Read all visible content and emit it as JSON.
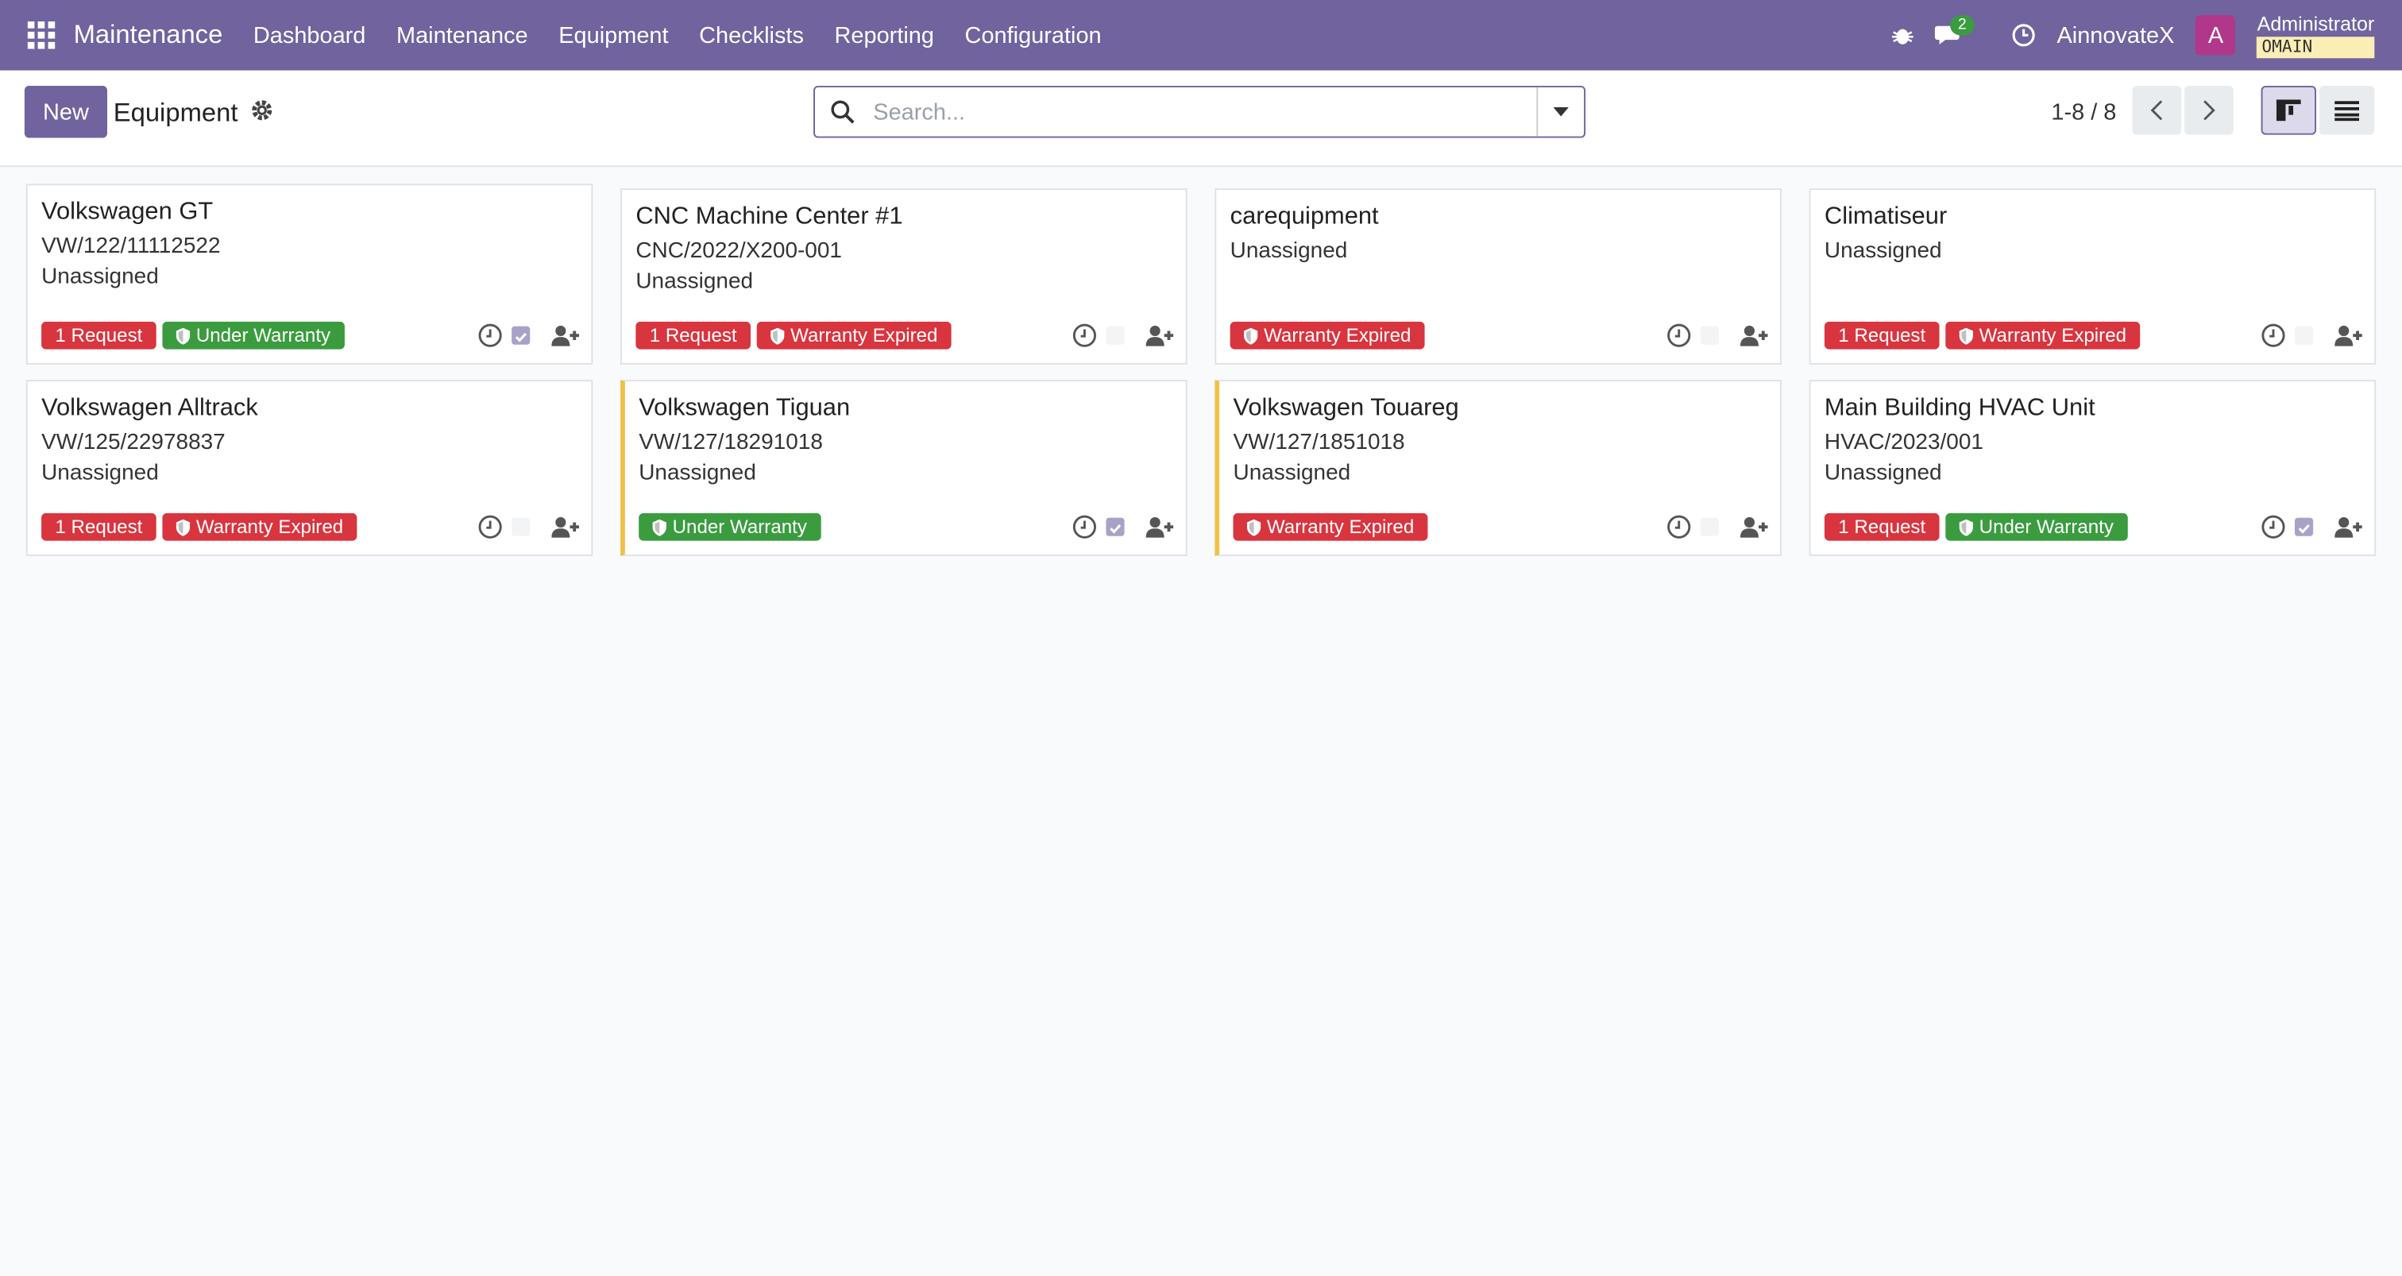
{
  "navbar": {
    "app_name": "Maintenance",
    "menu": [
      "Dashboard",
      "Maintenance",
      "Equipment",
      "Checklists",
      "Reporting",
      "Configuration"
    ],
    "message_count": "2",
    "company": "AinnovateX",
    "avatar": "A",
    "user": "Administrator",
    "database": "OMAIN"
  },
  "control_panel": {
    "new_button": "New",
    "title": "Equipment",
    "search_placeholder": "Search...",
    "pager": "1-8 / 8"
  },
  "cards": [
    {
      "name": "Volkswagen GT",
      "code": "VW/122/11112522",
      "assignee": "Unassigned",
      "requests": "1 Request",
      "warranty": "Under Warranty",
      "warranty_ok": true,
      "checked": true,
      "highlight": false
    },
    {
      "name": "CNC Machine Center #1",
      "code": "CNC/2022/X200-001",
      "assignee": "Unassigned",
      "requests": "1 Request",
      "warranty": "Warranty Expired",
      "warranty_ok": false,
      "checked": false,
      "highlight": false
    },
    {
      "name": "carequipment",
      "assignee": "Unassigned",
      "warranty": "Warranty Expired",
      "warranty_ok": false,
      "checked": false,
      "highlight": false
    },
    {
      "name": "Climatiseur",
      "assignee": "Unassigned",
      "requests": "1 Request",
      "warranty": "Warranty Expired",
      "warranty_ok": false,
      "checked": false,
      "highlight": false
    },
    {
      "name": "Volkswagen Alltrack",
      "code": "VW/125/22978837",
      "assignee": "Unassigned",
      "requests": "1 Request",
      "warranty": "Warranty Expired",
      "warranty_ok": false,
      "checked": false,
      "highlight": false
    },
    {
      "name": "Volkswagen Tiguan",
      "code": "VW/127/18291018",
      "assignee": "Unassigned",
      "warranty": "Under Warranty",
      "warranty_ok": true,
      "checked": true,
      "highlight": true
    },
    {
      "name": "Volkswagen Touareg",
      "code": "VW/127/1851018",
      "assignee": "Unassigned",
      "warranty": "Warranty Expired",
      "warranty_ok": false,
      "checked": false,
      "highlight": true
    },
    {
      "name": "Main Building HVAC Unit",
      "code": "HVAC/2023/001",
      "assignee": "Unassigned",
      "requests": "1 Request",
      "warranty": "Under Warranty",
      "warranty_ok": true,
      "checked": true,
      "highlight": false
    }
  ]
}
